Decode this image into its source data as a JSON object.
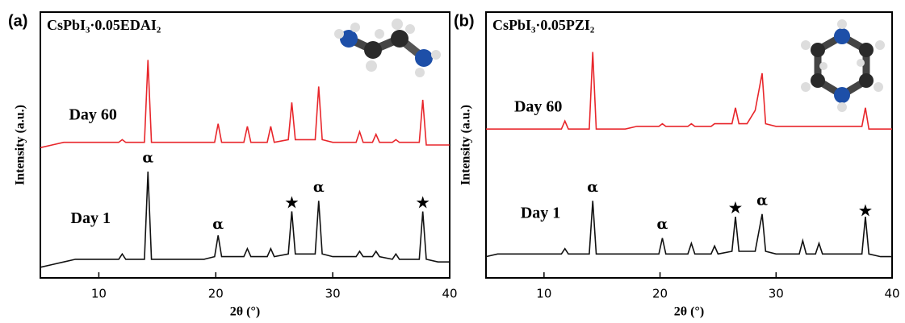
{
  "chart_data": [
    {
      "type": "line",
      "panel_label": "(a)",
      "title": "CsPbI₃·0.05EDAI₂",
      "x_label": "2θ (°)",
      "y_label": "Intensity (a.u.)",
      "xlim": [
        5,
        40
      ],
      "xticks": [
        10,
        20,
        30,
        40
      ],
      "ylim": [
        0,
        100
      ],
      "x": [
        5,
        6,
        7,
        8,
        9,
        10,
        11,
        11.7,
        12.0,
        12.3,
        13,
        13.9,
        14.2,
        14.5,
        15,
        16,
        17,
        18,
        19,
        19.9,
        20.2,
        20.5,
        21,
        22,
        22.4,
        22.7,
        23,
        24,
        24.4,
        24.7,
        25,
        26.2,
        26.5,
        26.8,
        27.5,
        28.5,
        28.8,
        29.1,
        30,
        31,
        32,
        32.3,
        32.6,
        33.4,
        33.7,
        34,
        35.1,
        35.4,
        35.7,
        36.5,
        37.4,
        37.7,
        38,
        39,
        40
      ],
      "series": [
        {
          "name": "Day 60",
          "color": "#e8262b",
          "label_position": [
            9.5,
            61
          ],
          "values": [
            49,
            50,
            51,
            51,
            51,
            51,
            51,
            51,
            52,
            51,
            51,
            51,
            82,
            51,
            51,
            51,
            51,
            51,
            51,
            51,
            58,
            51,
            51,
            51,
            51,
            57,
            51,
            51,
            51,
            57,
            51,
            52,
            66,
            52,
            52,
            52,
            72,
            52,
            51,
            51,
            51,
            55,
            51,
            51,
            54,
            51,
            51,
            52,
            51,
            51,
            51,
            67,
            50,
            50,
            50
          ]
        },
        {
          "name": "Day 1",
          "color": "#111111",
          "label_position": [
            9.3,
            22
          ],
          "values": [
            4,
            5,
            6,
            7,
            7,
            7,
            7,
            7,
            9,
            7,
            7,
            7,
            40,
            7,
            7,
            7,
            7,
            7,
            7,
            8,
            16,
            8,
            8,
            8,
            8,
            11,
            8,
            8,
            8,
            11,
            8,
            9,
            25,
            9,
            9,
            9,
            29,
            9,
            8,
            8,
            8,
            10,
            8,
            8,
            10,
            8,
            7,
            9,
            7,
            7,
            7,
            25,
            7,
            6,
            6
          ]
        }
      ],
      "annotations": [
        {
          "text": "α",
          "x": 14.2,
          "y": 45
        },
        {
          "text": "α",
          "x": 20.2,
          "y": 20
        },
        {
          "text": "★",
          "x": 26.5,
          "y": 28
        },
        {
          "text": "α",
          "x": 28.8,
          "y": 34
        },
        {
          "text": "★",
          "x": 37.7,
          "y": 28
        }
      ]
    },
    {
      "type": "line",
      "panel_label": "(b)",
      "title": "CsPbI₃·0.05PZI₂",
      "x_label": "2θ (°)",
      "y_label": "Intensity (a.u.)",
      "xlim": [
        5,
        40
      ],
      "xticks": [
        10,
        20,
        30,
        40
      ],
      "ylim": [
        0,
        100
      ],
      "x": [
        5,
        6,
        7,
        8,
        9,
        10,
        11,
        11.5,
        11.8,
        12.1,
        13,
        13.9,
        14.2,
        14.5,
        15,
        16,
        17,
        18,
        19,
        19.9,
        20.2,
        20.5,
        21,
        22,
        22.4,
        22.7,
        23,
        24,
        24.4,
        24.7,
        25,
        26.2,
        26.5,
        26.8,
        27.5,
        28.2,
        28.8,
        29.1,
        30,
        31,
        32,
        32.3,
        32.6,
        33.4,
        33.7,
        34,
        35.1,
        35.4,
        35.7,
        36.5,
        37.4,
        37.7,
        38,
        39,
        40
      ],
      "series": [
        {
          "name": "Day 60",
          "color": "#e8262b",
          "label_position": [
            9.5,
            64
          ],
          "values": [
            56,
            56,
            56,
            56,
            56,
            56,
            56,
            56,
            59,
            56,
            56,
            56,
            85,
            56,
            56,
            56,
            56,
            57,
            57,
            57,
            58,
            57,
            57,
            57,
            57,
            58,
            57,
            57,
            57,
            58,
            58,
            58,
            64,
            58,
            58,
            63,
            77,
            58,
            57,
            57,
            57,
            57,
            57,
            57,
            57,
            57,
            57,
            57,
            57,
            57,
            57,
            64,
            56,
            56,
            56
          ]
        },
        {
          "name": "Day 1",
          "color": "#111111",
          "label_position": [
            9.7,
            24
          ],
          "values": [
            8,
            9,
            9,
            9,
            9,
            9,
            9,
            9,
            11,
            9,
            9,
            9,
            29,
            9,
            9,
            9,
            9,
            9,
            9,
            9,
            15,
            9,
            9,
            9,
            9,
            13,
            9,
            9,
            9,
            12,
            9,
            10,
            23,
            10,
            10,
            10,
            24,
            10,
            9,
            9,
            9,
            14,
            9,
            9,
            13,
            9,
            9,
            9,
            9,
            9,
            9,
            23,
            9,
            8,
            8
          ]
        }
      ],
      "annotations": [
        {
          "text": "α",
          "x": 14.2,
          "y": 34
        },
        {
          "text": "α",
          "x": 20.2,
          "y": 20
        },
        {
          "text": "★",
          "x": 26.5,
          "y": 26
        },
        {
          "text": "α",
          "x": 28.8,
          "y": 29
        },
        {
          "text": "★",
          "x": 37.7,
          "y": 25
        }
      ]
    }
  ]
}
